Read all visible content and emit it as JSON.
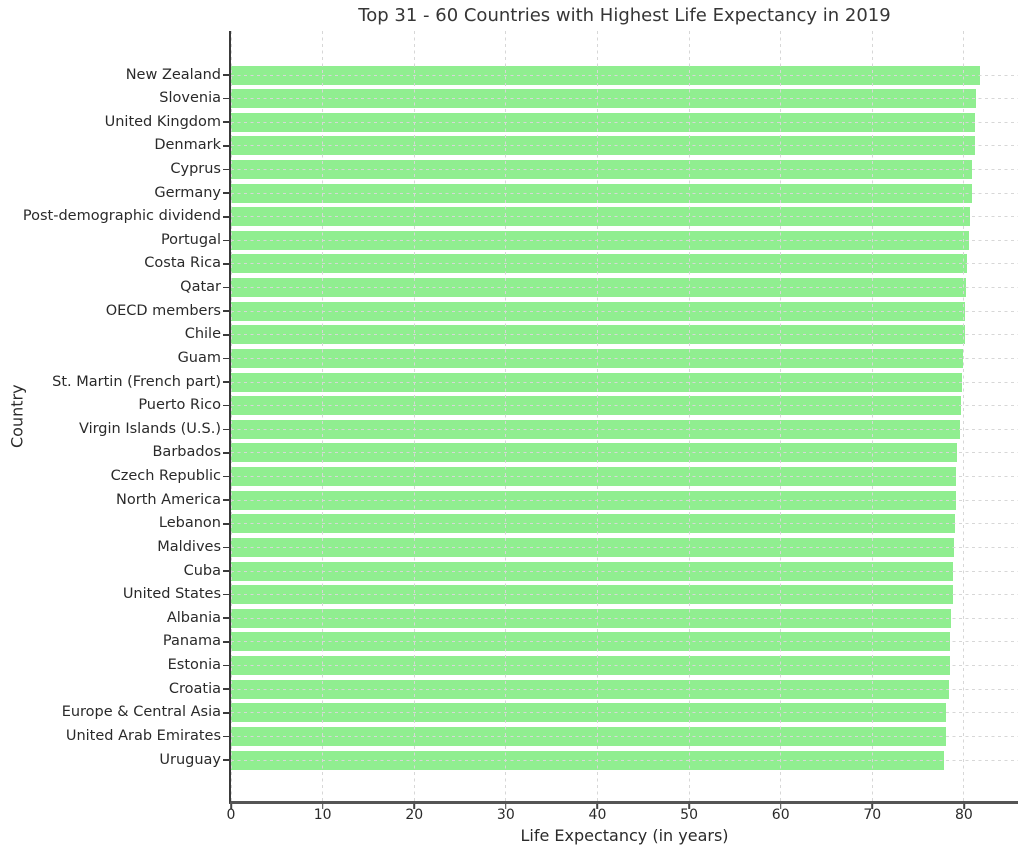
{
  "chart_data": {
    "type": "bar",
    "orientation": "horizontal",
    "title": "Top 31 - 60 Countries with Highest Life Expectancy in 2019",
    "xlabel": "Life Expectancy (in years)",
    "ylabel": "Country",
    "categories": [
      "New Zealand",
      "Slovenia",
      "United Kingdom",
      "Denmark",
      "Cyprus",
      "Germany",
      "Post-demographic dividend",
      "Portugal",
      "Costa Rica",
      "Qatar",
      "OECD members",
      "Chile",
      "Guam",
      "St. Martin (French part)",
      "Puerto Rico",
      "Virgin Islands (U.S.)",
      "Barbados",
      "Czech Republic",
      "North America",
      "Lebanon",
      "Maldives",
      "Cuba",
      "United States",
      "Albania",
      "Panama",
      "Estonia",
      "Croatia",
      "Europe & Central Asia",
      "United Arab Emirates",
      "Uruguay"
    ],
    "values": [
      81.7,
      81.3,
      81.2,
      81.2,
      80.9,
      80.9,
      80.7,
      80.6,
      80.3,
      80.2,
      80.1,
      80.1,
      79.9,
      79.8,
      79.7,
      79.6,
      79.2,
      79.1,
      79.1,
      79.0,
      78.9,
      78.8,
      78.8,
      78.6,
      78.5,
      78.5,
      78.4,
      78.0,
      78.0,
      77.8
    ],
    "x_ticks": [
      0,
      10,
      20,
      30,
      40,
      50,
      60,
      70,
      80
    ],
    "xlim": [
      0,
      85.9
    ],
    "bar_color": "#90EE90",
    "grid": "dashed-both-axes",
    "grid_color": "#d7d7d7",
    "text_color": "#2a2a2a",
    "legend": "none"
  }
}
